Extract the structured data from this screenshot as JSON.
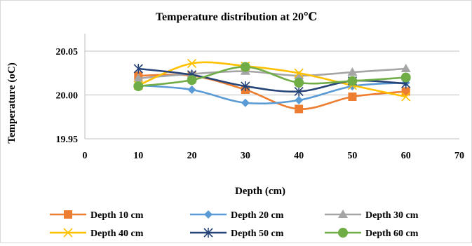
{
  "chart_data": {
    "type": "line",
    "title": "Temperature distribution at 20℃",
    "xlabel": "Depth (cm)",
    "ylabel": "Temperature (oC)",
    "xlim": [
      0,
      70
    ],
    "ylim": [
      19.95,
      20.07
    ],
    "x_ticks": [
      0,
      10,
      20,
      30,
      40,
      50,
      60,
      70
    ],
    "y_ticks": [
      19.95,
      20.0,
      20.05
    ],
    "y_tick_labels": [
      "19.95",
      "20.00",
      "20.05"
    ],
    "grid": "horizontal",
    "legend_position": "bottom",
    "smooth": true,
    "series": [
      {
        "name": "Depth 10 cm",
        "color": "#ED7D31",
        "marker": "square",
        "x": [
          10,
          20,
          30,
          40,
          50,
          60
        ],
        "y": [
          20.022,
          20.022,
          20.006,
          19.984,
          19.998,
          20.004
        ]
      },
      {
        "name": "Depth 20 cm",
        "color": "#5B9BD5",
        "marker": "diamond",
        "x": [
          10,
          20,
          30,
          40,
          50,
          60
        ],
        "y": [
          20.011,
          20.006,
          19.991,
          19.994,
          20.01,
          20.014
        ]
      },
      {
        "name": "Depth 30 cm",
        "color": "#A5A5A5",
        "marker": "triangle",
        "x": [
          10,
          20,
          30,
          40,
          50,
          60
        ],
        "y": [
          20.019,
          20.024,
          20.027,
          20.022,
          20.026,
          20.03
        ]
      },
      {
        "name": "Depth 40 cm",
        "color": "#FFC000",
        "marker": "x",
        "x": [
          10,
          20,
          30,
          40,
          50,
          60
        ],
        "y": [
          20.011,
          20.036,
          20.033,
          20.025,
          20.011,
          19.998
        ]
      },
      {
        "name": "Depth 50 cm",
        "color": "#264478",
        "marker": "star",
        "x": [
          10,
          20,
          30,
          40,
          50,
          60
        ],
        "y": [
          20.03,
          20.023,
          20.01,
          20.004,
          20.016,
          20.013
        ]
      },
      {
        "name": "Depth 60 cm",
        "color": "#70AD47",
        "marker": "circle",
        "x": [
          10,
          20,
          30,
          40,
          50,
          60
        ],
        "y": [
          20.01,
          20.017,
          20.032,
          20.014,
          20.016,
          20.02
        ]
      }
    ]
  }
}
